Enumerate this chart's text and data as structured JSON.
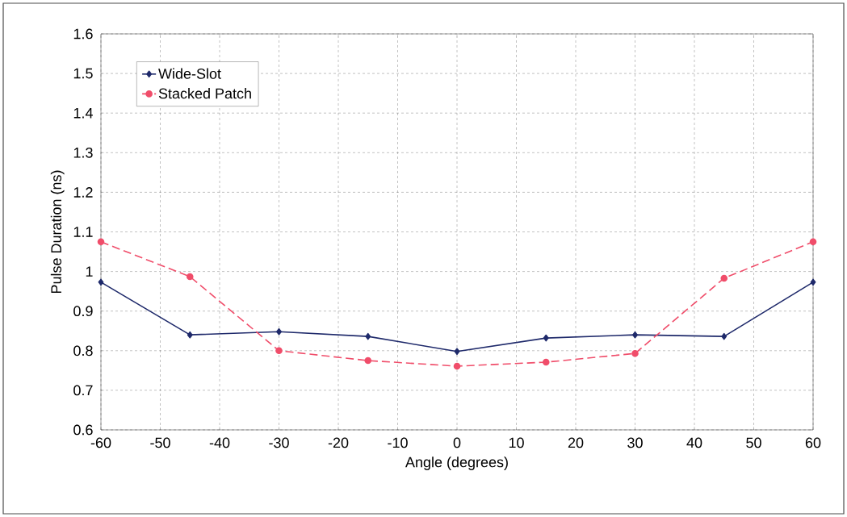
{
  "chart_data": {
    "type": "line",
    "xlabel": "Angle (degrees)",
    "ylabel": "Pulse Duration (ns)",
    "x": [
      -60,
      -45,
      -30,
      -15,
      0,
      15,
      30,
      45,
      60
    ],
    "series": [
      {
        "name": "Wide-Slot",
        "color": "#1f2a6b",
        "marker": "diamond",
        "line_style": "solid",
        "values": [
          0.973,
          0.84,
          0.848,
          0.836,
          0.798,
          0.832,
          0.84,
          0.836,
          0.973
        ]
      },
      {
        "name": "Stacked Patch",
        "color": "#f04d6a",
        "marker": "circle",
        "line_style": "dashed",
        "values": [
          1.075,
          0.987,
          0.8,
          0.775,
          0.761,
          0.771,
          0.793,
          0.983,
          1.075
        ]
      }
    ],
    "xlim": [
      -60,
      60
    ],
    "xticks": [
      -60,
      -50,
      -40,
      -30,
      -20,
      -10,
      0,
      10,
      20,
      30,
      40,
      50,
      60
    ],
    "ylim": [
      0.6,
      1.6
    ],
    "yticks": [
      0.6,
      0.7,
      0.8,
      0.9,
      1,
      1.1,
      1.2,
      1.3,
      1.4,
      1.5,
      1.6
    ],
    "grid": true,
    "legend": "top left"
  }
}
